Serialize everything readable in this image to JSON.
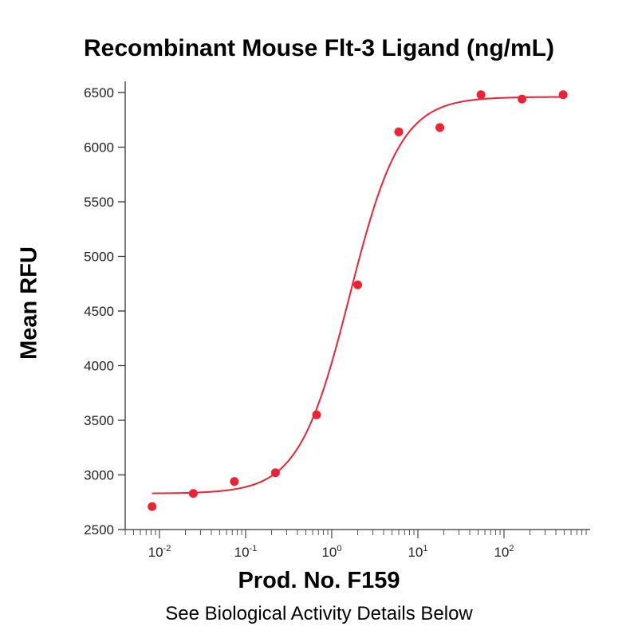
{
  "chart_data": {
    "type": "scatter",
    "title": "Recombinant Mouse Flt-3 Ligand (ng/mL)",
    "xlabel": "Prod. No. F159",
    "ylabel": "Mean RFU",
    "footnote": "See Biological Activity Details Below",
    "x_scale": "log",
    "xlim": [
      0.004,
      1000
    ],
    "ylim": [
      2500,
      6500
    ],
    "x_ticks": [
      {
        "value": 0.01,
        "base": "10",
        "exp": "-2"
      },
      {
        "value": 0.1,
        "base": "10",
        "exp": "-1"
      },
      {
        "value": 1,
        "base": "10",
        "exp": "0"
      },
      {
        "value": 10,
        "base": "10",
        "exp": "1"
      },
      {
        "value": 100,
        "base": "10",
        "exp": "2"
      }
    ],
    "y_ticks": [
      2500,
      3000,
      3500,
      4000,
      4500,
      5000,
      5500,
      6000,
      6500
    ],
    "grid": false,
    "color": "#ee2233",
    "series": [
      {
        "points": [
          {
            "x": 0.0082,
            "y": 2710
          },
          {
            "x": 0.0247,
            "y": 2830
          },
          {
            "x": 0.074,
            "y": 2940
          },
          {
            "x": 0.222,
            "y": 3020
          },
          {
            "x": 0.667,
            "y": 3550
          },
          {
            "x": 2.0,
            "y": 4740
          },
          {
            "x": 6.0,
            "y": 6140
          },
          {
            "x": 18.0,
            "y": 6180
          },
          {
            "x": 54.0,
            "y": 6480
          },
          {
            "x": 162.0,
            "y": 6440
          },
          {
            "x": 486.0,
            "y": 6480
          }
        ],
        "fit": {
          "bottom": 2830,
          "top": 6460,
          "ec50": 1.62,
          "hill": 1.47
        }
      }
    ]
  }
}
